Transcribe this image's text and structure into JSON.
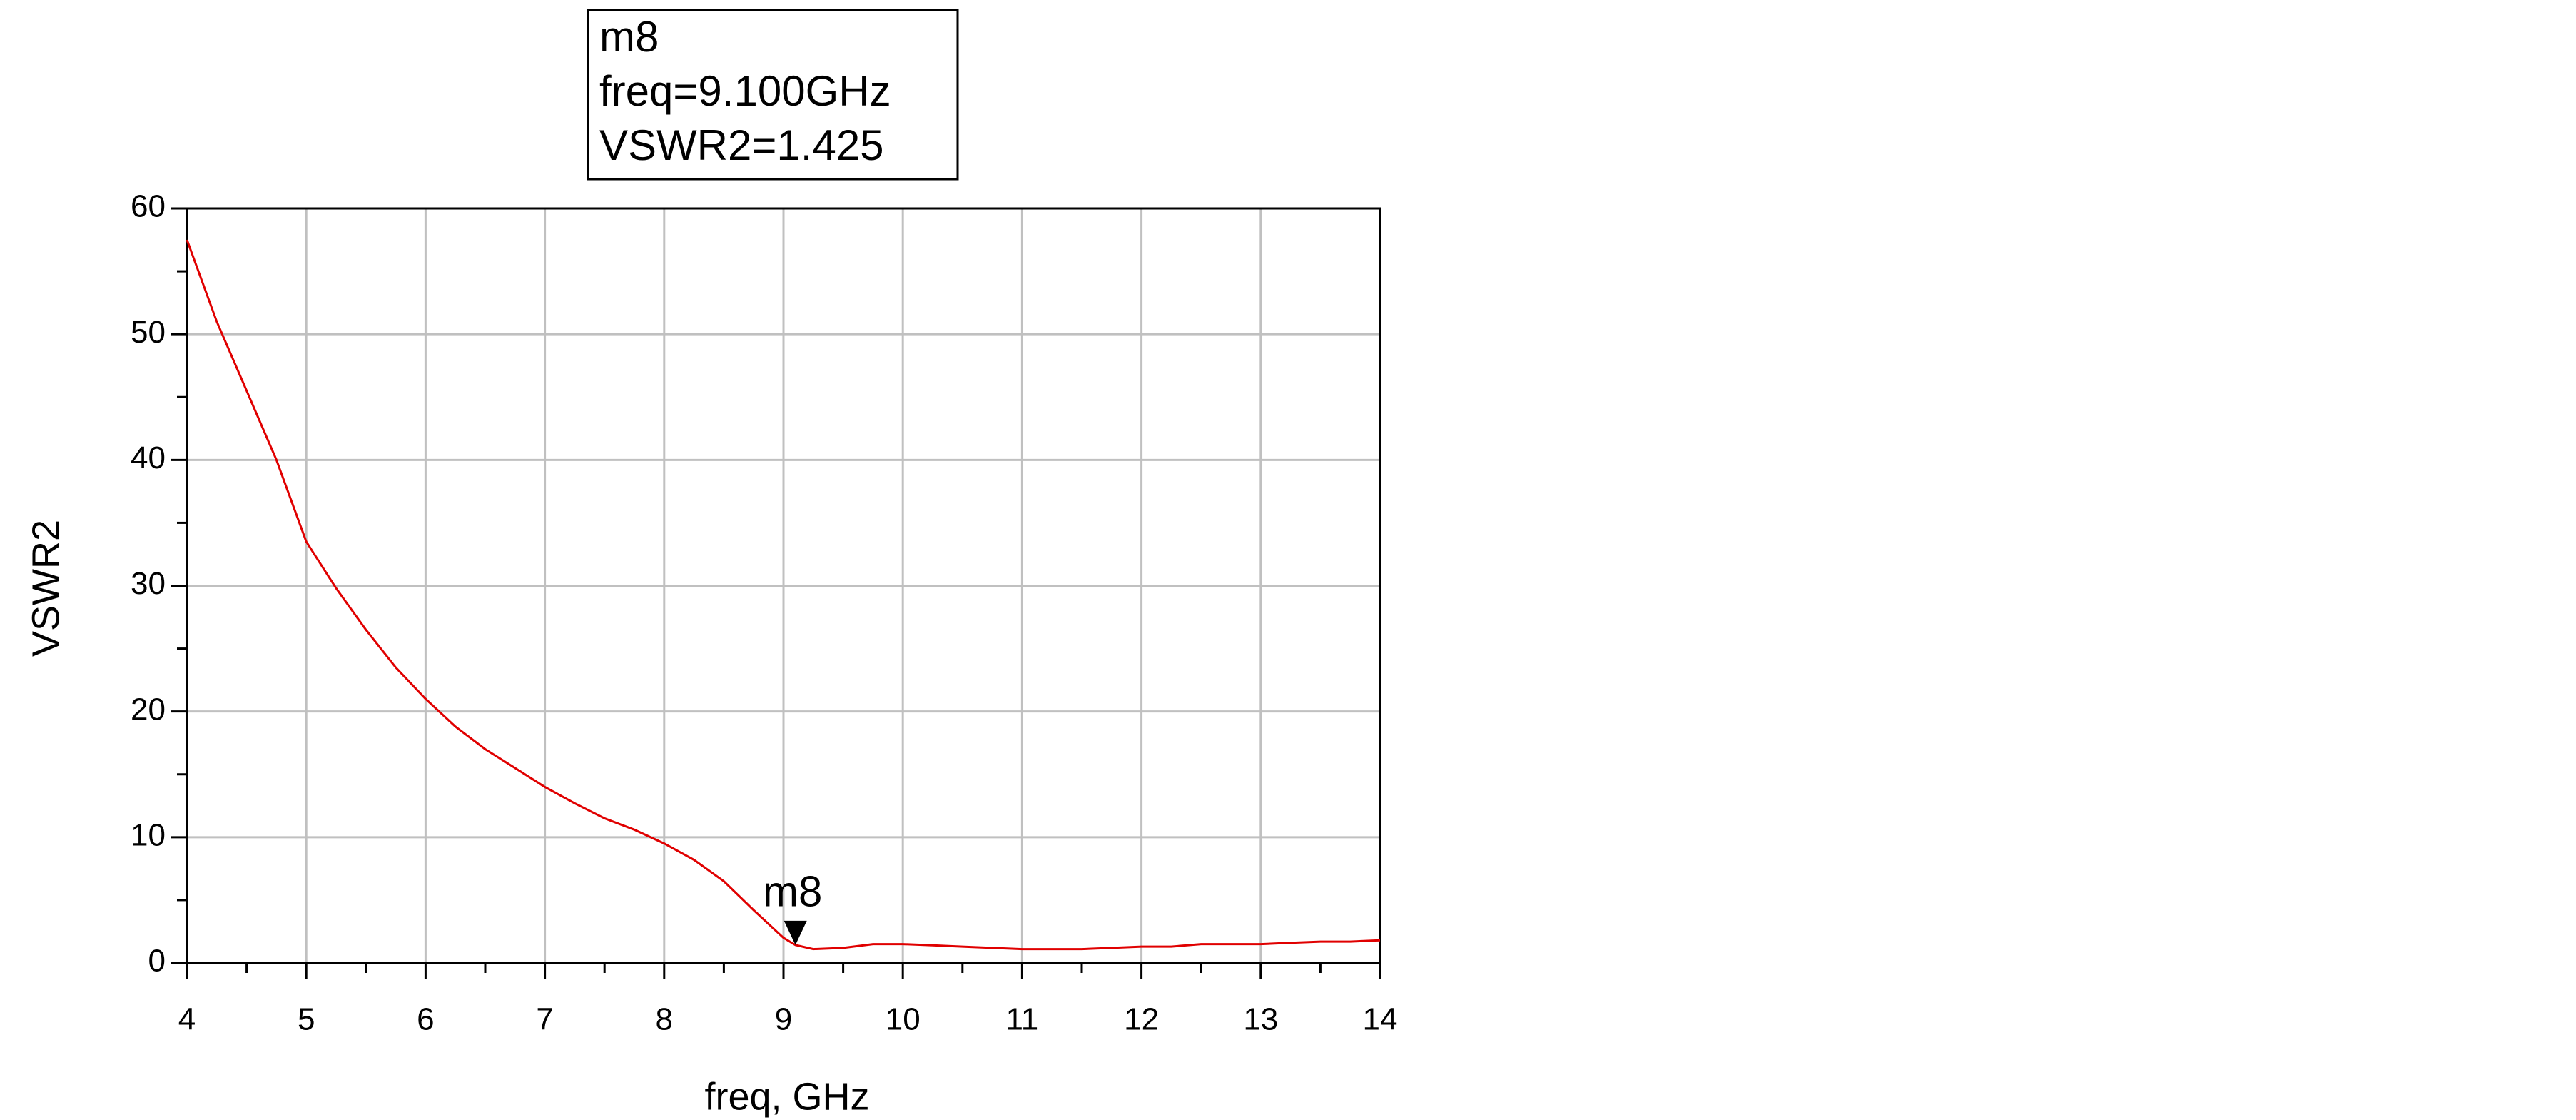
{
  "chart_data": {
    "type": "line",
    "x_label": "freq, GHz",
    "y_label": "VSWR2",
    "label_color": "#e00000",
    "x": [
      4,
      4.25,
      4.5,
      4.75,
      5,
      5.25,
      5.5,
      5.75,
      6,
      6.25,
      6.5,
      6.75,
      7,
      7.25,
      7.5,
      7.75,
      8,
      8.25,
      8.5,
      8.75,
      9,
      9.1,
      9.25,
      9.5,
      9.75,
      10,
      10.25,
      10.5,
      10.75,
      11,
      11.25,
      11.5,
      11.75,
      12,
      12.25,
      12.5,
      12.75,
      13,
      13.25,
      13.5,
      13.75,
      14
    ],
    "series": [
      {
        "name": "VSWR2",
        "color": "#e00000",
        "values": [
          57.5,
          51,
          45.5,
          40,
          33.5,
          29.8,
          26.5,
          23.5,
          21,
          18.8,
          17,
          15.5,
          14,
          12.7,
          11.5,
          10.6,
          9.5,
          8.2,
          6.5,
          4.2,
          2.0,
          1.425,
          1.1,
          1.2,
          1.5,
          1.5,
          1.4,
          1.3,
          1.2,
          1.1,
          1.1,
          1.1,
          1.2,
          1.3,
          1.3,
          1.5,
          1.5,
          1.5,
          1.6,
          1.7,
          1.7,
          1.8
        ]
      }
    ],
    "xlim": [
      4,
      14
    ],
    "xticks": [
      4,
      5,
      6,
      7,
      8,
      9,
      10,
      11,
      12,
      13,
      14
    ],
    "ylim": [
      0,
      60
    ],
    "yticks": [
      0,
      10,
      20,
      30,
      40,
      50,
      60
    ],
    "grid": true,
    "marker": {
      "name": "m8",
      "x": 9.1,
      "y": 1.425,
      "lines": [
        "freq=9.100GHz",
        "VSWR2=1.425"
      ]
    }
  }
}
